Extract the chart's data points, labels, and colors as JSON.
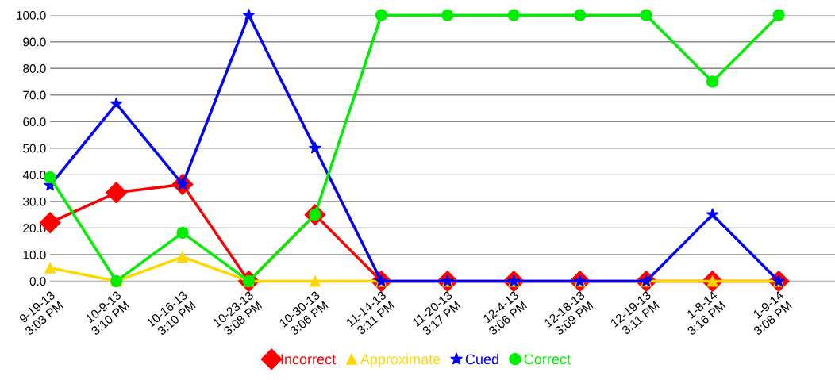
{
  "chart_data": {
    "type": "line",
    "categories": [
      "9-19-13\n3:03 PM",
      "10-9-13\n3:10 PM",
      "10-16-13\n3:10 PM",
      "10-23-13\n3:08 PM",
      "10-30-13\n3:06 PM",
      "11-14-13\n3:11 PM",
      "11-20-13\n3:17 PM",
      "12-4-13\n3:06 PM",
      "12-18-13\n3:09 PM",
      "12-19-13\n3:11 PM",
      "1-8-14\n3:16 PM",
      "1-9-14\n3:08 PM"
    ],
    "series": [
      {
        "name": "Incorrect",
        "color": "#ff0000",
        "marker": "diamond",
        "values": [
          22,
          33.3,
          36.4,
          0,
          25,
          0,
          0,
          0,
          0,
          0,
          0,
          0
        ]
      },
      {
        "name": "Approximate",
        "color": "#ffd700",
        "marker": "triangle",
        "values": [
          5,
          0,
          9.1,
          0,
          0,
          0,
          0,
          0,
          0,
          0,
          0,
          0
        ]
      },
      {
        "name": "Cued",
        "color": "#0000ff",
        "marker": "star",
        "values": [
          36,
          66.7,
          36.4,
          100,
          50,
          0,
          0,
          0,
          0,
          0,
          25,
          0
        ]
      },
      {
        "name": "Correct",
        "color": "#00ee00",
        "marker": "circle",
        "values": [
          39,
          0,
          18.2,
          0,
          25,
          100,
          100,
          100,
          100,
          100,
          75,
          100
        ]
      }
    ],
    "ylim": [
      0,
      100
    ],
    "yticks": [
      {
        "value": 0,
        "label": "0.0"
      },
      {
        "value": 10,
        "label": "10.0"
      },
      {
        "value": 20,
        "label": "20.0"
      },
      {
        "value": 30,
        "label": "30.0"
      },
      {
        "value": 40,
        "label": "40.0"
      },
      {
        "value": 50,
        "label": "50.0"
      },
      {
        "value": 60,
        "label": "60.0"
      },
      {
        "value": 70,
        "label": "70.0"
      },
      {
        "value": 80,
        "label": "80.0"
      },
      {
        "value": 90,
        "label": "90.0"
      },
      {
        "value": 100,
        "label": "100.0"
      }
    ],
    "grid": "y",
    "legend": "bottom",
    "line_style": "solid"
  }
}
